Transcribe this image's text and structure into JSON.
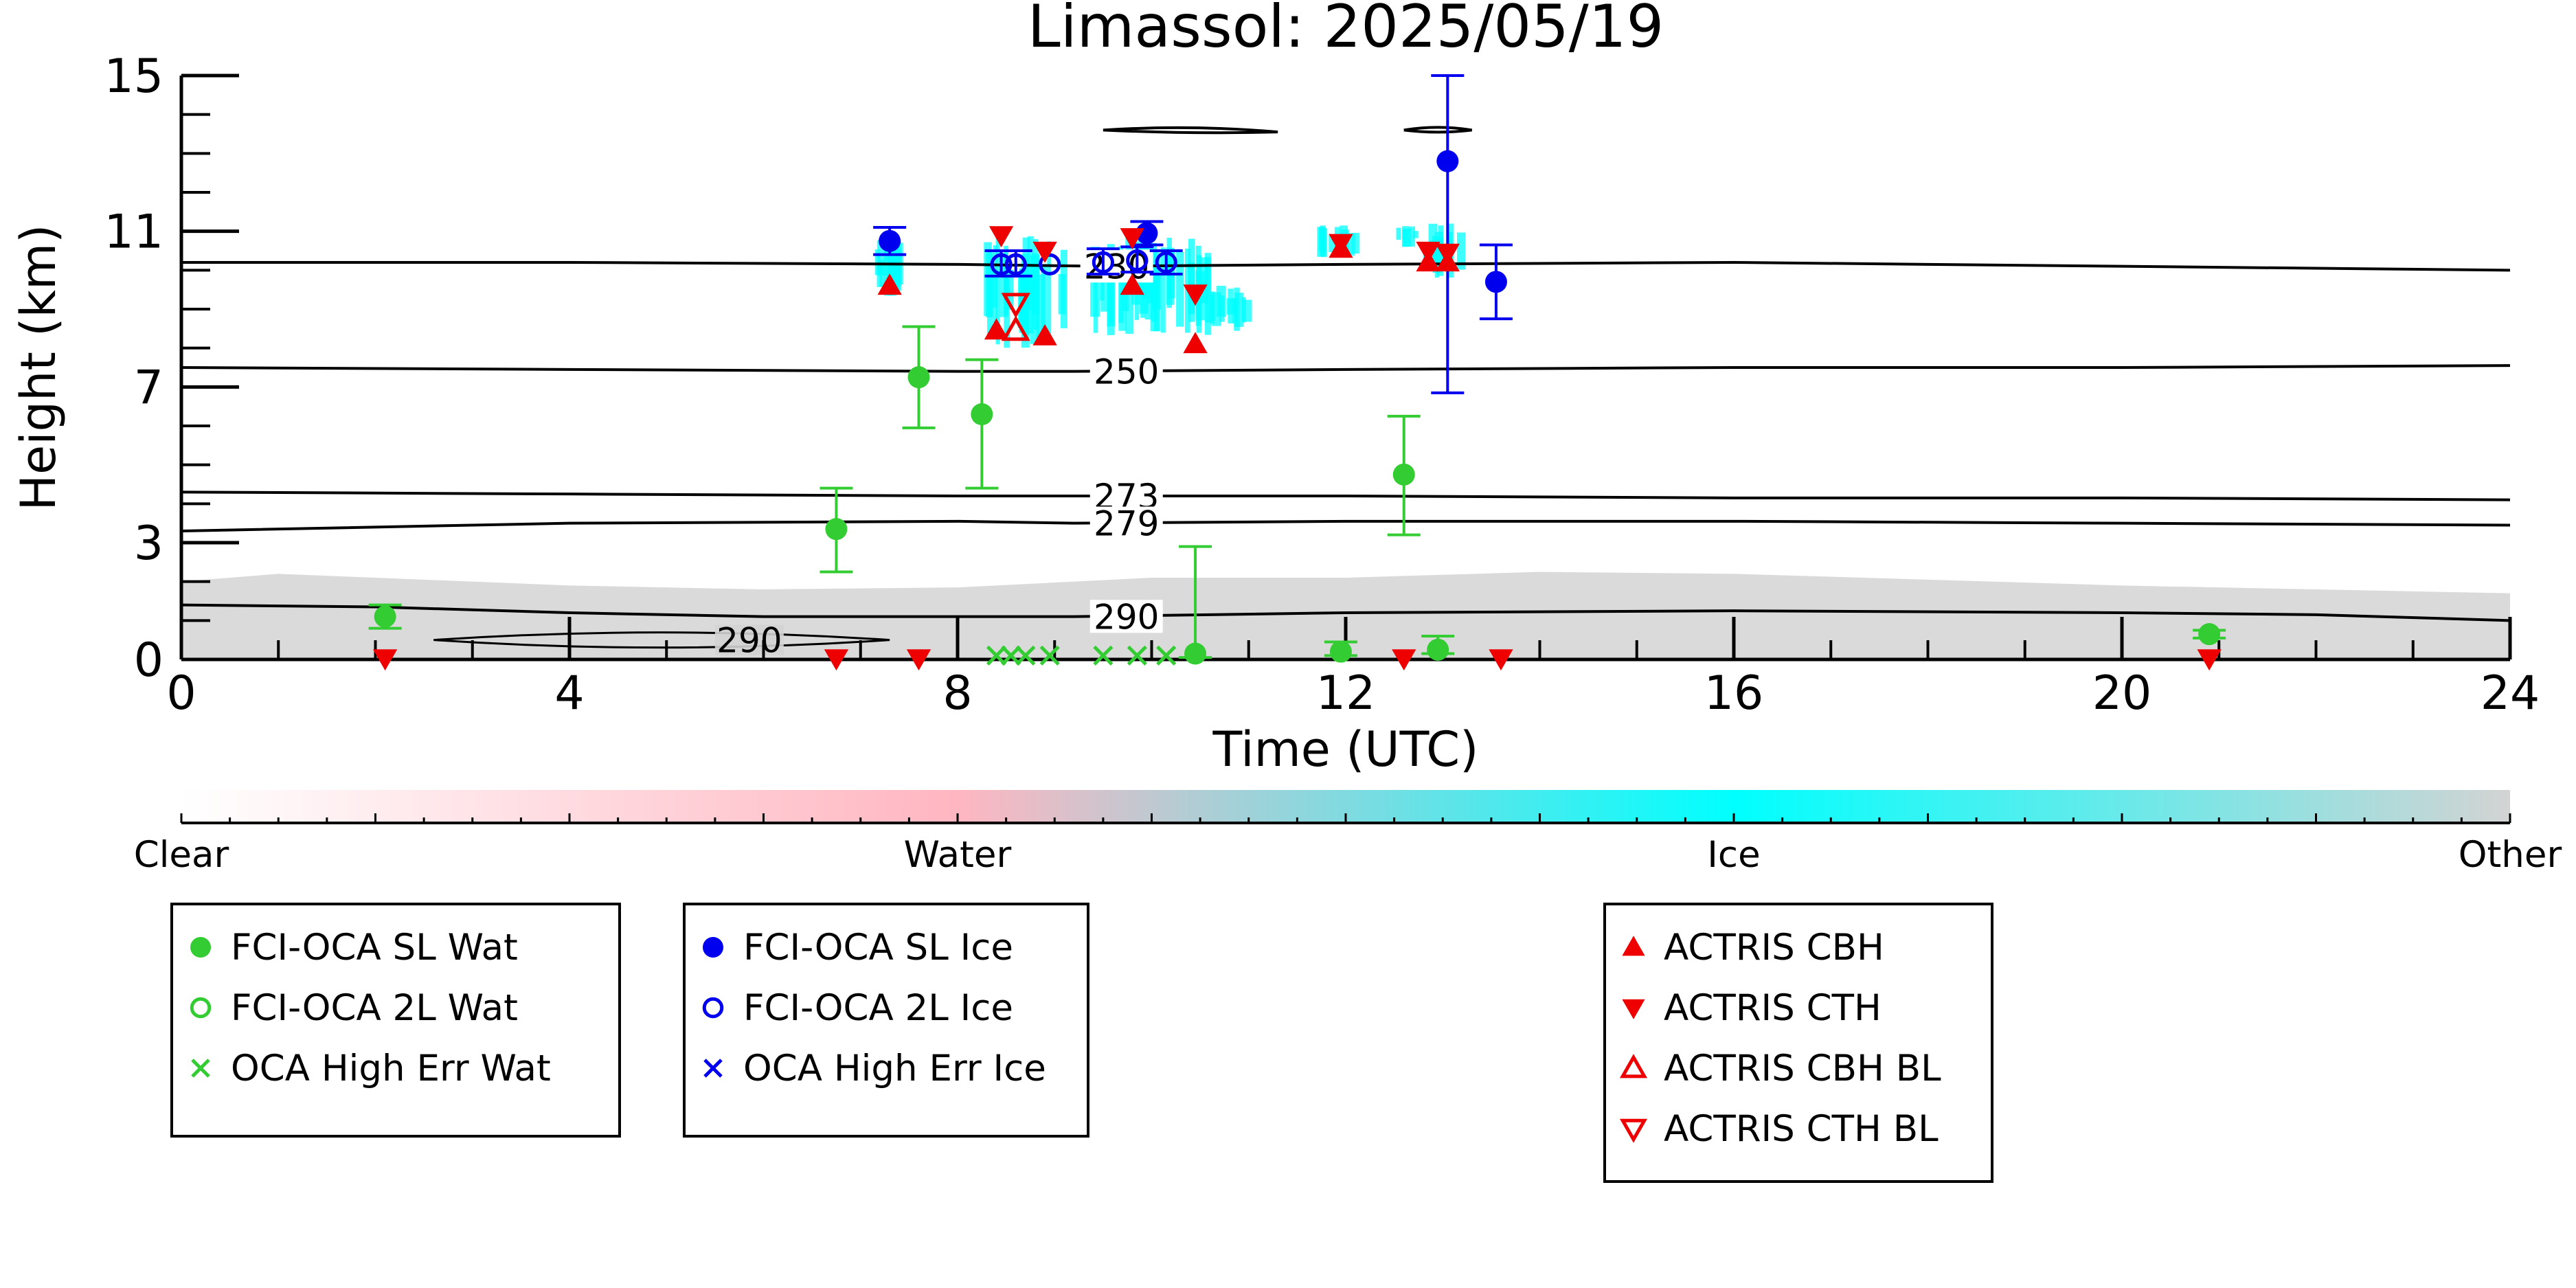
{
  "chart_data": {
    "type": "scatter",
    "title": "Limassol: 2025/05/19",
    "xlabel": "Time (UTC)",
    "ylabel": "Height (km)",
    "xlim": [
      0,
      24
    ],
    "ylim": [
      0,
      15
    ],
    "x_ticks": [
      "0",
      "4",
      "8",
      "12",
      "16",
      "20",
      "24"
    ],
    "y_ticks": [
      "0",
      "3",
      "7",
      "11",
      "15"
    ],
    "grid": false,
    "colors": {
      "water_sl": "#33cc33",
      "ice_sl": "#0000ee",
      "actris": "#ee0000",
      "cloudnet_ice": "#00ffff",
      "cloudnet_other": "#d3d3d3",
      "contour": "#000000"
    },
    "temperature_contours": [
      {
        "label": "230",
        "x": [
          0,
          4,
          8,
          9.5,
          12,
          16,
          20,
          24
        ],
        "y": [
          10.2,
          10.2,
          10.15,
          10.1,
          10.15,
          10.2,
          10.1,
          10.0
        ]
      },
      {
        "label": "250",
        "x": [
          0,
          4,
          8,
          9.2,
          12,
          16,
          20,
          24
        ],
        "y": [
          7.5,
          7.45,
          7.4,
          7.4,
          7.45,
          7.5,
          7.5,
          7.55
        ]
      },
      {
        "label": "273",
        "x": [
          0,
          4,
          8,
          9.2,
          12,
          16,
          20,
          24
        ],
        "y": [
          4.3,
          4.25,
          4.2,
          4.2,
          4.2,
          4.15,
          4.15,
          4.1
        ]
      },
      {
        "label": "279",
        "x": [
          0,
          4,
          8,
          9.2,
          12,
          16,
          20,
          24
        ],
        "y": [
          3.3,
          3.5,
          3.55,
          3.5,
          3.55,
          3.55,
          3.5,
          3.45
        ]
      },
      {
        "label": "290",
        "x": [
          0,
          2,
          4,
          6,
          8,
          9.2,
          12,
          16,
          20,
          22,
          24
        ],
        "y": [
          1.4,
          1.35,
          1.2,
          1.1,
          1.1,
          1.1,
          1.2,
          1.25,
          1.2,
          1.15,
          1.0
        ]
      }
    ],
    "closed_contour_290": {
      "label": "290",
      "x_range": [
        2.6,
        7.3
      ],
      "y": 0.5
    },
    "upper_contour_segments": [
      {
        "x": [
          9.5,
          11.3
        ],
        "y": [
          13.6,
          13.55
        ]
      },
      {
        "x": [
          12.6,
          13.3
        ],
        "y": [
          13.6,
          13.6
        ]
      }
    ],
    "series": [
      {
        "name": "FCI-OCA SL Wat",
        "marker": "filled-circle",
        "color": "#33cc33",
        "x": [
          2.1,
          6.75,
          7.6,
          8.25,
          10.45,
          11.95,
          12.6,
          12.95,
          20.9
        ],
        "y": [
          1.1,
          3.35,
          7.25,
          6.3,
          0.15,
          0.2,
          4.75,
          0.25,
          0.65
        ],
        "err_low": [
          0.3,
          1.1,
          1.3,
          1.9,
          0.1,
          0.1,
          1.55,
          0.1,
          0.1
        ],
        "err_high": [
          0.3,
          1.05,
          1.3,
          1.4,
          2.75,
          0.25,
          1.5,
          0.35,
          0.1
        ]
      },
      {
        "name": "FCI-OCA 2L Wat",
        "marker": "open-circle",
        "color": "#33cc33",
        "x": [],
        "y": []
      },
      {
        "name": "OCA High Err Wat",
        "marker": "cross",
        "color": "#33cc33",
        "x": [
          8.4,
          8.55,
          8.7,
          8.95,
          9.5,
          9.85,
          10.15
        ],
        "y": [
          0.1,
          0.1,
          0.1,
          0.1,
          0.1,
          0.1,
          0.1
        ]
      },
      {
        "name": "FCI-OCA SL Ice",
        "marker": "filled-circle",
        "color": "#0000ee",
        "x": [
          7.3,
          9.95,
          13.05,
          13.55
        ],
        "y": [
          10.75,
          10.95,
          12.8,
          9.7
        ],
        "err_low": [
          0.35,
          0.3,
          5.95,
          0.95
        ],
        "err_high": [
          0.35,
          0.3,
          2.2,
          0.95
        ]
      },
      {
        "name": "FCI-OCA 2L Ice",
        "marker": "open-circle",
        "color": "#0000ee",
        "x": [
          8.45,
          8.6,
          8.95,
          9.5,
          9.85,
          10.15
        ],
        "y": [
          10.15,
          10.15,
          10.15,
          10.2,
          10.25,
          10.2
        ],
        "err_low": [
          0.3,
          0.3,
          0,
          0.3,
          0.3,
          0.3
        ],
        "err_high": [
          0.35,
          0.35,
          0,
          0.35,
          0.35,
          0.3
        ]
      },
      {
        "name": "OCA High Err Ice",
        "marker": "cross",
        "color": "#0000ee",
        "x": [],
        "y": []
      },
      {
        "name": "ACTRIS CBH",
        "marker": "triangle-up",
        "color": "#ee0000",
        "x": [
          7.3,
          8.4,
          8.9,
          9.8,
          10.45,
          11.95,
          12.85,
          13.05
        ],
        "y": [
          9.6,
          8.45,
          8.3,
          9.6,
          8.1,
          10.55,
          10.2,
          10.2
        ]
      },
      {
        "name": "ACTRIS CTH",
        "marker": "triangle-down",
        "color": "#ee0000",
        "x": [
          2.1,
          6.75,
          7.6,
          8.45,
          8.9,
          9.8,
          10.45,
          11.95,
          12.6,
          12.85,
          13.05,
          13.6,
          20.9
        ],
        "y": [
          0.03,
          0.03,
          0.03,
          10.9,
          10.5,
          10.85,
          9.4,
          10.7,
          0.03,
          10.5,
          10.45,
          0.03,
          0.03
        ]
      },
      {
        "name": "ACTRIS CBH BL",
        "marker": "open-triangle-up",
        "color": "#ee0000",
        "x": [
          8.6
        ],
        "y": [
          8.45
        ]
      },
      {
        "name": "ACTRIS CTH BL",
        "marker": "open-triangle-down",
        "color": "#ee0000",
        "x": [
          8.6
        ],
        "y": [
          9.15
        ]
      }
    ],
    "cloudnet_ice_patches": [
      {
        "x": [
          7.1,
          7.5
        ],
        "y": [
          9.3,
          10.8
        ]
      },
      {
        "x": [
          8.25,
          9.1
        ],
        "y": [
          8.0,
          10.9
        ]
      },
      {
        "x": [
          9.3,
          10.6
        ],
        "y": [
          8.3,
          11.0
        ]
      },
      {
        "x": [
          10.6,
          11.0
        ],
        "y": [
          8.4,
          9.6
        ]
      },
      {
        "x": [
          11.7,
          12.1
        ],
        "y": [
          10.3,
          11.2
        ]
      },
      {
        "x": [
          12.5,
          12.7
        ],
        "y": [
          10.6,
          11.2
        ]
      },
      {
        "x": [
          12.8,
          13.2
        ],
        "y": [
          9.8,
          11.2
        ]
      }
    ],
    "colorbar": {
      "labels": [
        "Clear",
        "Water",
        "Ice",
        "Other"
      ],
      "stops": [
        "#ffffff",
        "#ffb6c1",
        "#00ffff",
        "#d3d3d3"
      ]
    },
    "legend_placement": "below"
  },
  "legends": [
    {
      "items": [
        {
          "label": "FCI-OCA SL Wat",
          "marker": "filled-circle",
          "color": "#33cc33"
        },
        {
          "label": "FCI-OCA 2L Wat",
          "marker": "open-circle",
          "color": "#33cc33"
        },
        {
          "label": "OCA High Err Wat",
          "marker": "cross",
          "color": "#33cc33"
        }
      ]
    },
    {
      "items": [
        {
          "label": "FCI-OCA SL Ice",
          "marker": "filled-circle",
          "color": "#0000ee"
        },
        {
          "label": "FCI-OCA 2L Ice",
          "marker": "open-circle",
          "color": "#0000ee"
        },
        {
          "label": "OCA High Err Ice",
          "marker": "cross",
          "color": "#0000ee"
        }
      ]
    },
    {
      "items": [
        {
          "label": "ACTRIS CBH",
          "marker": "triangle-up",
          "color": "#ee0000"
        },
        {
          "label": "ACTRIS CTH",
          "marker": "triangle-down",
          "color": "#ee0000"
        },
        {
          "label": "ACTRIS CBH BL",
          "marker": "open-triangle-up",
          "color": "#ee0000"
        },
        {
          "label": "ACTRIS CTH BL",
          "marker": "open-triangle-down",
          "color": "#ee0000"
        }
      ]
    }
  ]
}
